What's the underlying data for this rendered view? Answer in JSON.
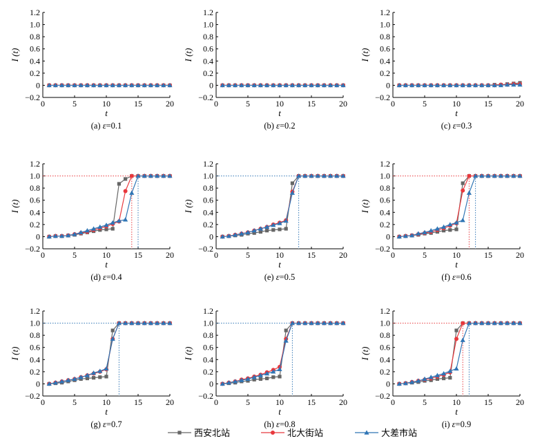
{
  "chart_data": {
    "type": "line",
    "x_label": "t",
    "y_label": "I (t)",
    "xlim": [
      0,
      20
    ],
    "ylim": [
      -0.2,
      1.2
    ],
    "x_ticks": [
      0,
      5,
      10,
      15,
      20
    ],
    "y_ticks": [
      -0.2,
      0,
      0.2,
      0.4,
      0.6,
      0.8,
      1.0,
      1.2
    ],
    "x_tick_labels": [
      "0",
      "5",
      "10",
      "15",
      "20"
    ],
    "y_tick_labels": [
      "−0.2",
      "0",
      "0.2",
      "0.4",
      "0.6",
      "0.8",
      "1.0",
      "1.2"
    ],
    "legend": [
      {
        "name": "西安北站",
        "color": "#666666",
        "marker": "square"
      },
      {
        "name": "北大街站",
        "color": "#e8383d",
        "marker": "circle"
      },
      {
        "name": "大差市站",
        "color": "#2f75b5",
        "marker": "triangle"
      }
    ],
    "panels": [
      {
        "caption_prefix": "(a)",
        "epsilon_symbol": "ε",
        "epsilon_value": "=0.1",
        "x": [
          1,
          2,
          3,
          4,
          5,
          6,
          7,
          8,
          9,
          10,
          11,
          12,
          13,
          14,
          15,
          16,
          17,
          18,
          19,
          20
        ],
        "series": [
          {
            "name": "西安北站",
            "values": [
              0,
              0,
              0,
              0,
              0,
              0,
              0,
              0,
              0,
              0,
              0,
              0,
              0,
              0,
              0,
              0,
              0,
              0,
              0,
              0
            ]
          },
          {
            "name": "北大街站",
            "values": [
              0,
              0,
              0,
              0,
              0,
              0,
              0,
              0,
              0,
              0,
              0,
              0,
              0,
              0,
              0,
              0,
              0,
              0,
              0,
              0
            ]
          },
          {
            "name": "大差市站",
            "values": [
              0,
              0,
              0,
              0,
              0,
              0,
              0,
              0,
              0,
              0,
              0,
              0,
              0,
              0,
              0,
              0,
              0,
              0,
              0,
              0
            ]
          }
        ],
        "reference_lines": []
      },
      {
        "caption_prefix": "(b)",
        "epsilon_symbol": "ε",
        "epsilon_value": "=0.2",
        "x": [
          1,
          2,
          3,
          4,
          5,
          6,
          7,
          8,
          9,
          10,
          11,
          12,
          13,
          14,
          15,
          16,
          17,
          18,
          19,
          20
        ],
        "series": [
          {
            "name": "西安北站",
            "values": [
              0,
              0,
              0,
              0,
              0,
              0,
              0,
              0,
              0,
              0,
              0,
              0,
              0,
              0,
              0,
              0,
              0,
              0,
              0,
              0
            ]
          },
          {
            "name": "北大街站",
            "values": [
              0,
              0,
              0,
              0,
              0,
              0,
              0,
              0,
              0,
              0,
              0,
              0,
              0,
              0,
              0,
              0,
              0,
              0,
              0,
              0
            ]
          },
          {
            "name": "大差市站",
            "values": [
              0,
              0,
              0,
              0,
              0,
              0,
              0,
              0,
              0,
              0,
              0,
              0,
              0,
              0,
              0,
              0,
              0,
              0,
              0,
              0
            ]
          }
        ],
        "reference_lines": []
      },
      {
        "caption_prefix": "(c)",
        "epsilon_symbol": "ε",
        "epsilon_value": "=0.3",
        "x": [
          1,
          2,
          3,
          4,
          5,
          6,
          7,
          8,
          9,
          10,
          11,
          12,
          13,
          14,
          15,
          16,
          17,
          18,
          19,
          20
        ],
        "series": [
          {
            "name": "西安北站",
            "values": [
              0,
              0,
              0,
              0,
              0,
              0,
              0,
              0,
              0,
              0,
              0,
              0,
              0,
              0,
              0,
              0.01,
              0.01,
              0.02,
              0.03,
              0.04
            ]
          },
          {
            "name": "北大街站",
            "values": [
              0,
              0,
              0,
              0,
              0,
              0,
              0,
              0,
              0,
              0,
              0,
              0,
              0,
              0,
              0,
              0,
              0.01,
              0.01,
              0.02,
              0.02
            ]
          },
          {
            "name": "大差市站",
            "values": [
              0,
              0,
              0,
              0,
              0,
              0,
              0,
              0,
              0,
              0,
              0,
              0,
              0,
              0,
              0,
              0,
              0,
              0.01,
              0.01,
              0.01
            ]
          }
        ],
        "reference_lines": []
      },
      {
        "caption_prefix": "(d)",
        "epsilon_symbol": "ε",
        "epsilon_value": "=0.4",
        "x": [
          1,
          2,
          3,
          4,
          5,
          6,
          7,
          8,
          9,
          10,
          11,
          12,
          13,
          14,
          15,
          16,
          17,
          18,
          19,
          20
        ],
        "series": [
          {
            "name": "西安北站",
            "values": [
              0,
              0.01,
              0.01,
              0.02,
              0.03,
              0.05,
              0.07,
              0.09,
              0.11,
              0.12,
              0.13,
              0.87,
              0.95,
              1,
              1,
              1,
              1,
              1,
              1,
              1
            ]
          },
          {
            "name": "北大街站",
            "values": [
              0,
              0.01,
              0.01,
              0.02,
              0.04,
              0.06,
              0.08,
              0.11,
              0.14,
              0.17,
              0.21,
              0.25,
              0.75,
              1,
              1,
              1,
              1,
              1,
              1,
              1
            ]
          },
          {
            "name": "大差市站",
            "values": [
              0,
              0.01,
              0.01,
              0.02,
              0.04,
              0.07,
              0.1,
              0.13,
              0.16,
              0.19,
              0.23,
              0.26,
              0.28,
              0.72,
              1,
              1,
              1,
              1,
              1,
              1
            ]
          }
        ],
        "reference_lines": [
          {
            "kind": "h",
            "y": 1,
            "to_x": 14,
            "color": "#e8383d"
          },
          {
            "kind": "v",
            "x": 14,
            "color": "#e8383d"
          },
          {
            "kind": "v",
            "x": 15,
            "color": "#2f75b5"
          }
        ]
      },
      {
        "caption_prefix": "(e)",
        "epsilon_symbol": "ε",
        "epsilon_value": "=0.5",
        "x": [
          1,
          2,
          3,
          4,
          5,
          6,
          7,
          8,
          9,
          10,
          11,
          12,
          13,
          14,
          15,
          16,
          17,
          18,
          19,
          20
        ],
        "series": [
          {
            "name": "西安北站",
            "values": [
              0,
              0.01,
              0.02,
              0.03,
              0.05,
              0.06,
              0.08,
              0.1,
              0.11,
              0.12,
              0.13,
              0.88,
              1,
              1,
              1,
              1,
              1,
              1,
              1,
              1
            ]
          },
          {
            "name": "北大街站",
            "values": [
              0,
              0.01,
              0.03,
              0.05,
              0.07,
              0.1,
              0.13,
              0.16,
              0.2,
              0.23,
              0.27,
              0.74,
              1,
              1,
              1,
              1,
              1,
              1,
              1,
              1
            ]
          },
          {
            "name": "大差市站",
            "values": [
              0,
              0.01,
              0.03,
              0.05,
              0.07,
              0.1,
              0.13,
              0.16,
              0.19,
              0.22,
              0.26,
              0.72,
              1,
              1,
              1,
              1,
              1,
              1,
              1,
              1
            ]
          }
        ],
        "reference_lines": [
          {
            "kind": "h",
            "y": 1,
            "to_x": 13,
            "color": "#2f75b5"
          },
          {
            "kind": "v",
            "x": 13,
            "color": "#2f75b5"
          }
        ]
      },
      {
        "caption_prefix": "(f)",
        "epsilon_symbol": "ε",
        "epsilon_value": "=0.6",
        "x": [
          1,
          2,
          3,
          4,
          5,
          6,
          7,
          8,
          9,
          10,
          11,
          12,
          13,
          14,
          15,
          16,
          17,
          18,
          19,
          20
        ],
        "series": [
          {
            "name": "西安北站",
            "values": [
              0,
              0.01,
              0.02,
              0.03,
              0.05,
              0.06,
              0.08,
              0.1,
              0.11,
              0.12,
              0.88,
              1,
              1,
              1,
              1,
              1,
              1,
              1,
              1,
              1
            ]
          },
          {
            "name": "北大街站",
            "values": [
              0,
              0.01,
              0.02,
              0.04,
              0.06,
              0.08,
              0.11,
              0.14,
              0.18,
              0.22,
              0.76,
              1,
              1,
              1,
              1,
              1,
              1,
              1,
              1,
              1
            ]
          },
          {
            "name": "大差市站",
            "values": [
              0,
              0.01,
              0.02,
              0.05,
              0.07,
              0.1,
              0.13,
              0.16,
              0.2,
              0.23,
              0.27,
              0.72,
              1,
              1,
              1,
              1,
              1,
              1,
              1,
              1
            ]
          }
        ],
        "reference_lines": [
          {
            "kind": "h",
            "y": 1,
            "to_x": 12,
            "color": "#e8383d"
          },
          {
            "kind": "v",
            "x": 12,
            "color": "#e8383d"
          },
          {
            "kind": "v",
            "x": 13,
            "color": "#2f75b5"
          }
        ]
      },
      {
        "caption_prefix": "(g)",
        "epsilon_symbol": "ε",
        "epsilon_value": "=0.7",
        "x": [
          1,
          2,
          3,
          4,
          5,
          6,
          7,
          8,
          9,
          10,
          11,
          12,
          13,
          14,
          15,
          16,
          17,
          18,
          19,
          20
        ],
        "series": [
          {
            "name": "西安北站",
            "values": [
              0,
              0.01,
              0.02,
              0.04,
              0.06,
              0.08,
              0.09,
              0.1,
              0.11,
              0.12,
              0.88,
              1,
              1,
              1,
              1,
              1,
              1,
              1,
              1,
              1
            ]
          },
          {
            "name": "北大街站",
            "values": [
              0,
              0.02,
              0.04,
              0.06,
              0.08,
              0.11,
              0.14,
              0.17,
              0.2,
              0.24,
              0.74,
              1,
              1,
              1,
              1,
              1,
              1,
              1,
              1,
              1
            ]
          },
          {
            "name": "大差市站",
            "values": [
              0,
              0.02,
              0.04,
              0.06,
              0.08,
              0.11,
              0.14,
              0.18,
              0.21,
              0.25,
              0.74,
              1,
              1,
              1,
              1,
              1,
              1,
              1,
              1,
              1
            ]
          }
        ],
        "reference_lines": [
          {
            "kind": "h",
            "y": 1,
            "to_x": 12,
            "color": "#2f75b5"
          },
          {
            "kind": "v",
            "x": 12,
            "color": "#2f75b5"
          }
        ]
      },
      {
        "caption_prefix": "(h)",
        "epsilon_symbol": "ε",
        "epsilon_value": "=0.8",
        "x": [
          1,
          2,
          3,
          4,
          5,
          6,
          7,
          8,
          9,
          10,
          11,
          12,
          13,
          14,
          15,
          16,
          17,
          18,
          19,
          20
        ],
        "series": [
          {
            "name": "西安北站",
            "values": [
              0,
              0.01,
              0.02,
              0.04,
              0.05,
              0.07,
              0.08,
              0.09,
              0.11,
              0.12,
              0.88,
              1,
              1,
              1,
              1,
              1,
              1,
              1,
              1,
              1
            ]
          },
          {
            "name": "北大街站",
            "values": [
              0,
              0.02,
              0.04,
              0.07,
              0.09,
              0.12,
              0.15,
              0.19,
              0.23,
              0.28,
              0.74,
              1,
              1,
              1,
              1,
              1,
              1,
              1,
              1,
              1
            ]
          },
          {
            "name": "大差市站",
            "values": [
              0,
              0.02,
              0.04,
              0.06,
              0.08,
              0.11,
              0.14,
              0.17,
              0.2,
              0.24,
              0.71,
              1,
              1,
              1,
              1,
              1,
              1,
              1,
              1,
              1
            ]
          }
        ],
        "reference_lines": [
          {
            "kind": "h",
            "y": 1,
            "to_x": 12,
            "color": "#2f75b5"
          },
          {
            "kind": "v",
            "x": 12,
            "color": "#2f75b5"
          }
        ]
      },
      {
        "caption_prefix": "(i)",
        "epsilon_symbol": "ε",
        "epsilon_value": "=0.9",
        "x": [
          1,
          2,
          3,
          4,
          5,
          6,
          7,
          8,
          9,
          10,
          11,
          12,
          13,
          14,
          15,
          16,
          17,
          18,
          19,
          20
        ],
        "series": [
          {
            "name": "西安北站",
            "values": [
              0,
              0.01,
              0.02,
              0.03,
              0.05,
              0.06,
              0.08,
              0.09,
              0.1,
              0.88,
              1,
              1,
              1,
              1,
              1,
              1,
              1,
              1,
              1,
              1
            ]
          },
          {
            "name": "北大街站",
            "values": [
              0,
              0.01,
              0.03,
              0.05,
              0.07,
              0.09,
              0.12,
              0.15,
              0.19,
              0.74,
              1,
              1,
              1,
              1,
              1,
              1,
              1,
              1,
              1,
              1
            ]
          },
          {
            "name": "大差市站",
            "values": [
              0,
              0.01,
              0.03,
              0.05,
              0.08,
              0.11,
              0.14,
              0.17,
              0.21,
              0.25,
              0.72,
              1,
              1,
              1,
              1,
              1,
              1,
              1,
              1,
              1
            ]
          }
        ],
        "reference_lines": [
          {
            "kind": "h",
            "y": 1,
            "to_x": 11,
            "color": "#e8383d"
          },
          {
            "kind": "v",
            "x": 11,
            "color": "#e8383d"
          },
          {
            "kind": "v",
            "x": 12,
            "color": "#2f75b5"
          }
        ]
      }
    ]
  }
}
